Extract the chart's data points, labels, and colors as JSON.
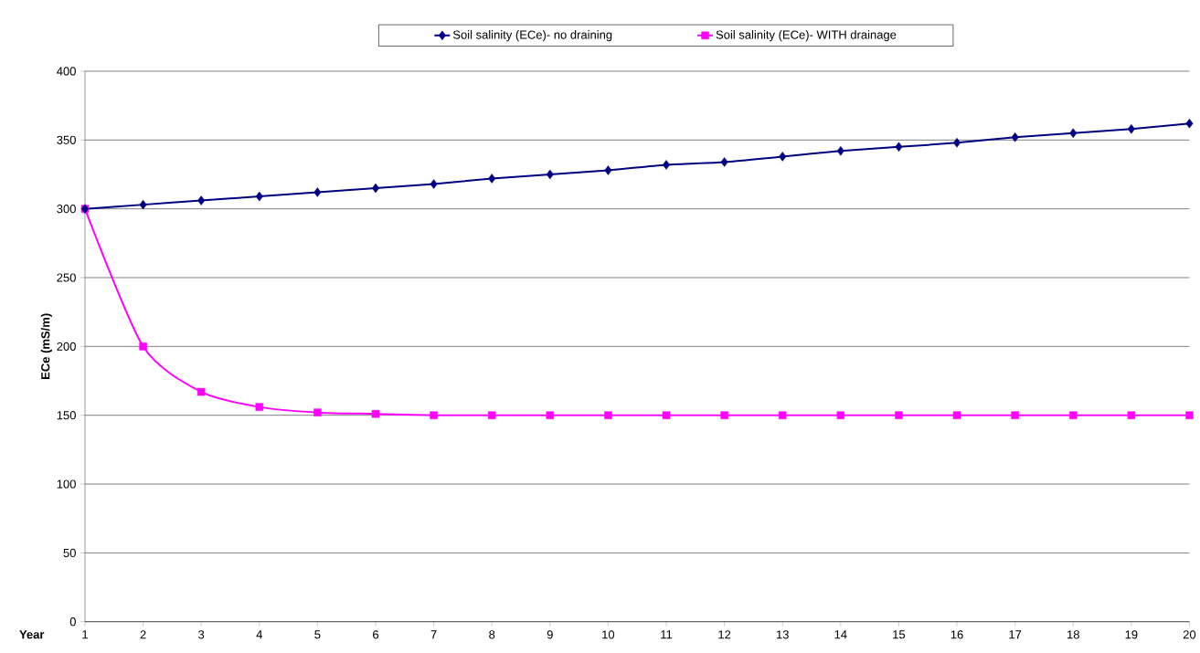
{
  "chart_data": {
    "type": "line",
    "xlabel": "Year",
    "ylabel": "ECe (mS/m)",
    "categories": [
      "1",
      "2",
      "3",
      "4",
      "5",
      "6",
      "7",
      "8",
      "9",
      "10",
      "11",
      "12",
      "13",
      "14",
      "15",
      "16",
      "17",
      "18",
      "19",
      "20"
    ],
    "series": [
      {
        "name": "Soil salinity (ECe)- no draining",
        "color": "#000080",
        "marker": "diamond",
        "values": [
          300,
          303,
          306,
          309,
          312,
          315,
          318,
          322,
          325,
          328,
          332,
          334,
          338,
          342,
          345,
          348,
          352,
          355,
          358,
          362
        ]
      },
      {
        "name": "Soil salinity (ECe)- WITH drainage",
        "color": "#ff00ff",
        "marker": "square",
        "values": [
          300,
          200,
          167,
          156,
          152,
          151,
          150,
          150,
          150,
          150,
          150,
          150,
          150,
          150,
          150,
          150,
          150,
          150,
          150,
          150
        ]
      }
    ],
    "ylim": [
      0,
      400
    ],
    "yticks": [
      0,
      50,
      100,
      150,
      200,
      250,
      300,
      350,
      400
    ],
    "grid": "y",
    "legend": "top"
  }
}
